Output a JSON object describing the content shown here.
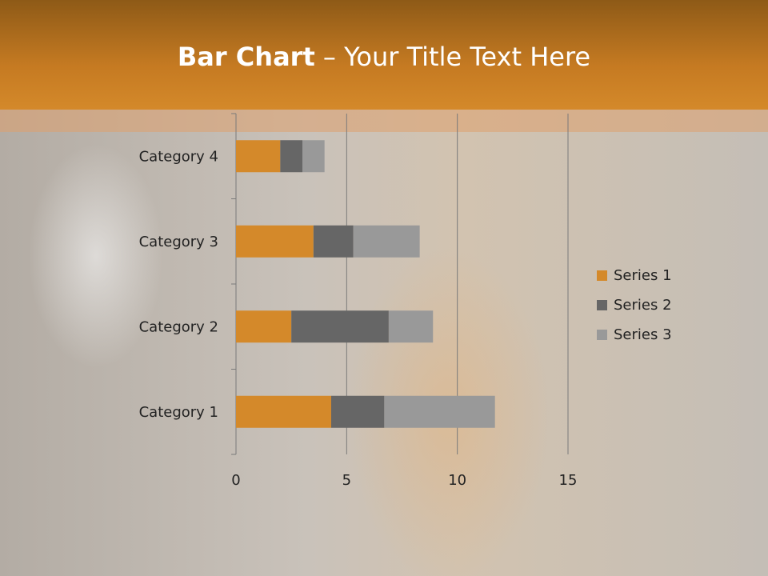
{
  "title": {
    "bold": "Bar Chart",
    "rest": " – Your Title Text Here"
  },
  "chart_data": {
    "type": "bar",
    "orientation": "horizontal",
    "stacked": true,
    "categories": [
      "Category 1",
      "Category 2",
      "Category 3",
      "Category 4"
    ],
    "series": [
      {
        "name": "Series 1",
        "values": [
          4.3,
          2.5,
          3.5,
          2
        ],
        "color": "#D4892A"
      },
      {
        "name": "Series 2",
        "values": [
          2.4,
          4.4,
          1.8,
          1
        ],
        "color": "#666666"
      },
      {
        "name": "Series 3",
        "values": [
          5,
          2,
          3,
          1
        ],
        "color": "#999999"
      }
    ],
    "xlim": [
      0,
      15
    ],
    "xticks": [
      0,
      5,
      10,
      15
    ],
    "grid": true,
    "legend": "right"
  }
}
